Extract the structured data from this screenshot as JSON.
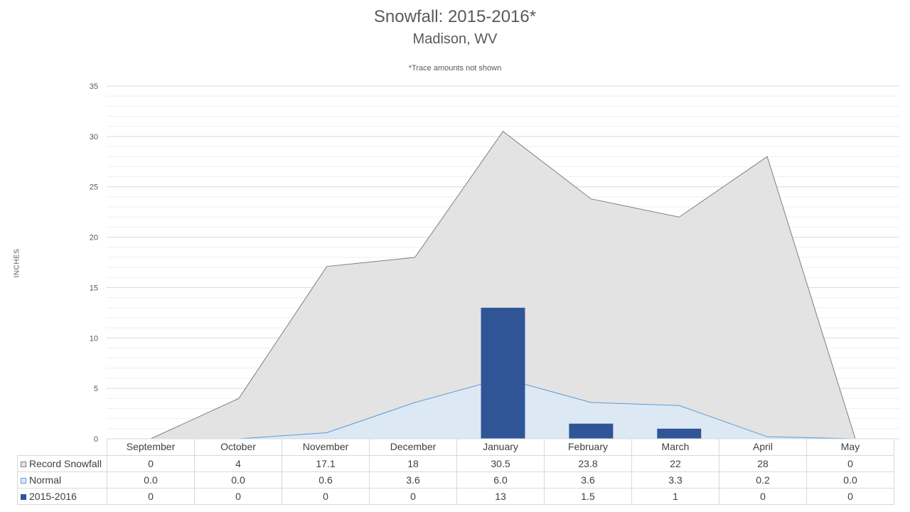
{
  "chart_data": {
    "type": "area",
    "title": "Snowfall: 2015-2016*",
    "subtitle": "Madison, WV",
    "note": "*Trace amounts not shown",
    "ylabel": "INCHES",
    "ylim": [
      0,
      35
    ],
    "yticks": [
      0,
      5,
      10,
      15,
      20,
      25,
      30,
      35
    ],
    "categories": [
      "September",
      "October",
      "November",
      "December",
      "January",
      "February",
      "March",
      "April",
      "May"
    ],
    "series": [
      {
        "name": "Record Snowfall",
        "kind": "area",
        "fill": "#e3e3e3",
        "stroke": "#7f7f7f",
        "values": [
          0,
          4,
          17.1,
          18,
          30.5,
          23.8,
          22,
          28,
          0
        ],
        "labels": [
          "0",
          "4",
          "17.1",
          "18",
          "30.5",
          "23.8",
          "22",
          "28",
          "0"
        ]
      },
      {
        "name": "Normal",
        "kind": "area",
        "fill": "#dde8f5",
        "stroke": "#5b9bd5",
        "values": [
          0.0,
          0.0,
          0.6,
          3.6,
          6.0,
          3.6,
          3.3,
          0.2,
          0.0
        ],
        "labels": [
          "0.0",
          "0.0",
          "0.6",
          "3.6",
          "6.0",
          "3.6",
          "3.3",
          "0.2",
          "0.0"
        ]
      },
      {
        "name": "2015-2016",
        "kind": "bar",
        "fill": "#2f5597",
        "stroke": "#2f5597",
        "values": [
          0,
          0,
          0,
          0,
          13,
          1.5,
          1,
          0,
          0
        ],
        "labels": [
          "0",
          "0",
          "0",
          "0",
          "13",
          "1.5",
          "1",
          "0",
          "0"
        ]
      }
    ],
    "grid": true,
    "legend": "data-table"
  }
}
